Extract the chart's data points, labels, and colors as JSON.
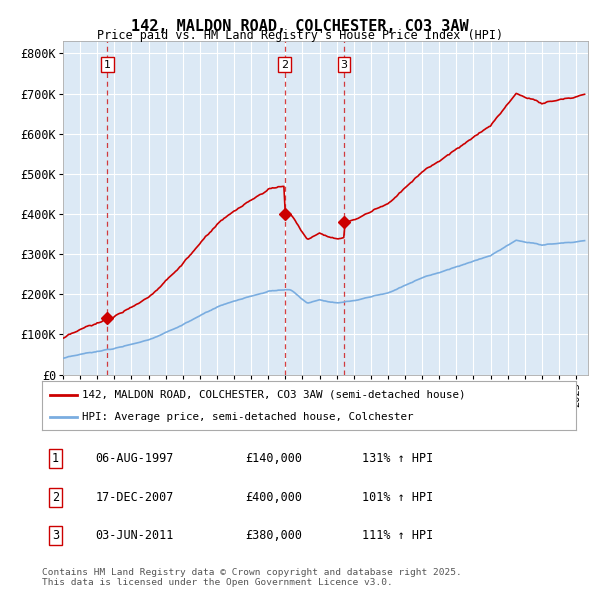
{
  "title": "142, MALDON ROAD, COLCHESTER, CO3 3AW",
  "subtitle": "Price paid vs. HM Land Registry's House Price Index (HPI)",
  "plot_bg_color": "#dce9f5",
  "ylim": [
    0,
    830000
  ],
  "yticks": [
    0,
    100000,
    200000,
    300000,
    400000,
    500000,
    600000,
    700000,
    800000
  ],
  "ytick_labels": [
    "£0",
    "£100K",
    "£200K",
    "£300K",
    "£400K",
    "£500K",
    "£600K",
    "£700K",
    "£800K"
  ],
  "xlim_start": 1995.0,
  "xlim_end": 2025.7,
  "sale_dates": [
    1997.595,
    2007.958,
    2011.42
  ],
  "sale_prices": [
    140000,
    400000,
    380000
  ],
  "sale_labels": [
    "1",
    "2",
    "3"
  ],
  "legend_red_label": "142, MALDON ROAD, COLCHESTER, CO3 3AW (semi-detached house)",
  "legend_blue_label": "HPI: Average price, semi-detached house, Colchester",
  "table_rows": [
    [
      "1",
      "06-AUG-1997",
      "£140,000",
      "131% ↑ HPI"
    ],
    [
      "2",
      "17-DEC-2007",
      "£400,000",
      "101% ↑ HPI"
    ],
    [
      "3",
      "03-JUN-2011",
      "£380,000",
      "111% ↑ HPI"
    ]
  ],
  "footer": "Contains HM Land Registry data © Crown copyright and database right 2025.\nThis data is licensed under the Open Government Licence v3.0.",
  "red_color": "#cc0000",
  "blue_color": "#7aade0",
  "grid_color": "#ffffff",
  "spine_color": "#aaaaaa"
}
